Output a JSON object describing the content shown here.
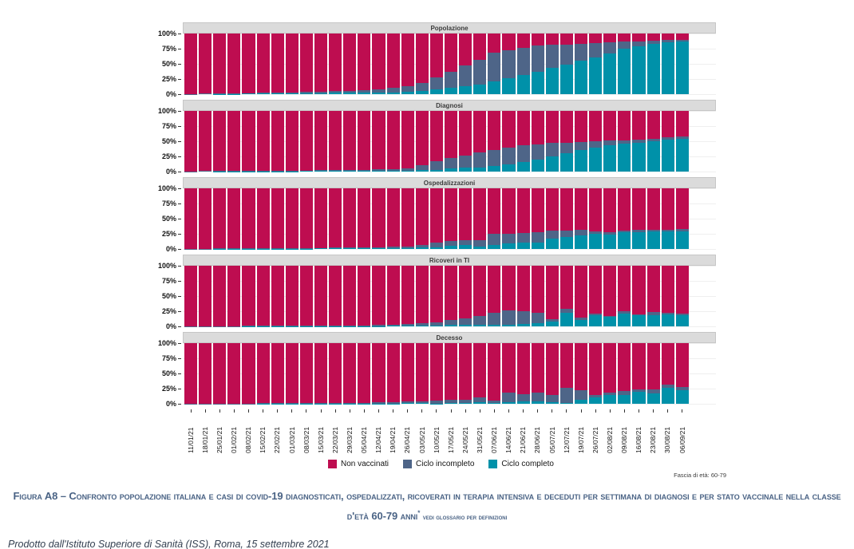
{
  "age_note": "Fascia di età: 60-79",
  "caption": {
    "text": "Figura A8 – Confronto popolazione italiana e casi di covid-19 diagnosticati, ospedalizzati, ricoverati in terapia intensiva e deceduti per settimana di diagnosi e per stato vaccinale nella classe d'età 60-79 anni",
    "asterisk": "*",
    "note": "vedi glossario per definizioni"
  },
  "footer": {
    "text": "Prodotto dall'Istituto Superiore di Sanità (ISS), Roma, 15 settembre 2021"
  },
  "chart_data": {
    "type": "bar",
    "stacked": true,
    "percent": true,
    "ylim": [
      0,
      100
    ],
    "grid": true,
    "legend_position": "bottom",
    "y_ticks": [
      "100%",
      "75%",
      "50%",
      "25%",
      "0%"
    ],
    "legend": [
      "Non vaccinati",
      "Ciclo incompleto",
      "Ciclo completo"
    ],
    "colors": {
      "non_vaccinati": "#be0d50",
      "ciclo_incompleto": "#4e6588",
      "ciclo_completo": "#0091a9"
    },
    "categories": [
      "11/01/21",
      "18/01/21",
      "25/01/21",
      "01/02/21",
      "08/02/21",
      "15/02/21",
      "22/02/21",
      "01/03/21",
      "08/03/21",
      "15/03/21",
      "22/03/21",
      "29/03/21",
      "05/04/21",
      "12/04/21",
      "19/04/21",
      "26/04/21",
      "03/05/21",
      "10/05/21",
      "17/05/21",
      "24/05/21",
      "31/05/21",
      "07/06/21",
      "14/06/21",
      "21/06/21",
      "28/06/21",
      "05/07/21",
      "12/07/21",
      "19/07/21",
      "26/07/21",
      "02/08/21",
      "09/08/21",
      "16/08/21",
      "23/08/21",
      "30/08/21",
      "06/09/21"
    ],
    "panels": [
      {
        "title": "Popolazione",
        "non_vaccinati": [
          99.5,
          99,
          98.7,
          98.5,
          98.3,
          97.5,
          97,
          97,
          96,
          95.5,
          95,
          94.5,
          93.5,
          92,
          90,
          87,
          82,
          73,
          63,
          53,
          43,
          32,
          28,
          24,
          20,
          19,
          18,
          17,
          16,
          14,
          13,
          13,
          12,
          11,
          10.5
        ],
        "ciclo_incompleto": [
          0.5,
          1,
          1,
          1,
          1,
          1.5,
          2,
          2,
          2.5,
          3,
          3,
          3.5,
          4,
          5,
          7,
          9,
          13,
          19,
          27,
          34,
          41,
          47,
          46,
          45,
          43,
          38,
          33,
          28,
          24,
          19,
          12,
          8,
          5,
          3.5,
          2.5
        ],
        "ciclo_completo": [
          0,
          0,
          0.3,
          0.5,
          0.7,
          1,
          1,
          1,
          1.5,
          1.5,
          2,
          2,
          2.5,
          3,
          3,
          4,
          5,
          8,
          10,
          13,
          16,
          21,
          26,
          31,
          37,
          43,
          49,
          55,
          60,
          67,
          75,
          79,
          83,
          85.5,
          87
        ]
      },
      {
        "title": "Diagnosi",
        "non_vaccinati": [
          99.5,
          98.9,
          98.3,
          98.2,
          98.6,
          98.5,
          98.5,
          98.4,
          98.2,
          97.5,
          97.5,
          97,
          97,
          96.5,
          95.5,
          94.5,
          90,
          83,
          78,
          74,
          69,
          64,
          60,
          57,
          55,
          53,
          52,
          51,
          50,
          49,
          48,
          47,
          46,
          44,
          42
        ],
        "ciclo_incompleto": [
          0.5,
          1,
          1.5,
          1.5,
          1,
          1,
          1,
          1,
          1,
          1.5,
          1.5,
          2,
          2,
          2.5,
          3,
          4,
          8,
          14,
          17,
          20,
          24,
          27,
          28,
          27,
          25,
          22,
          18,
          14,
          11,
          8,
          6,
          5,
          4,
          4,
          4
        ],
        "ciclo_completo": [
          0,
          0.1,
          0.2,
          0.3,
          0.4,
          0.5,
          0.5,
          0.6,
          0.8,
          1,
          1,
          1,
          1,
          1,
          1.5,
          1.5,
          2,
          3,
          5,
          6,
          7,
          9,
          12,
          16,
          20,
          25,
          30,
          35,
          39,
          43,
          46,
          48,
          50,
          52,
          54
        ]
      },
      {
        "title": "Ospedalizzazioni",
        "non_vaccinati": [
          99.7,
          99.5,
          98.8,
          98.7,
          98.7,
          98.6,
          98.5,
          98.5,
          98.4,
          98.2,
          97.5,
          97.5,
          97,
          97,
          96.5,
          95.5,
          93,
          90,
          87,
          85,
          85,
          75,
          75,
          73,
          72,
          70,
          70,
          69,
          71.5,
          72,
          70,
          69,
          69,
          69,
          67
        ],
        "ciclo_incompleto": [
          0.3,
          0.5,
          1,
          1,
          1,
          1,
          1,
          1,
          1,
          1,
          1.5,
          1.5,
          2,
          2,
          2.5,
          3,
          5,
          7.5,
          8,
          9,
          11,
          19,
          16,
          17,
          18,
          13,
          10,
          8,
          3,
          4,
          3,
          3,
          2.5,
          2.5,
          3.5
        ],
        "ciclo_completo": [
          0,
          0,
          0.2,
          0.3,
          0.3,
          0.4,
          0.5,
          0.5,
          0.6,
          0.8,
          1,
          1,
          1,
          1,
          1,
          1.5,
          2,
          2.5,
          5,
          6,
          4,
          6,
          9,
          10,
          10,
          17,
          20,
          23,
          25.5,
          24,
          27,
          28,
          28.5,
          28.5,
          29.5
        ]
      },
      {
        "title": "Ricoveri in TI",
        "non_vaccinati": [
          99.8,
          99.7,
          99.5,
          99.5,
          99.3,
          99.3,
          99,
          98.9,
          98.7,
          98.5,
          98.5,
          98,
          98,
          97.5,
          97,
          96.5,
          95,
          93,
          90,
          87,
          83,
          78,
          73,
          75,
          78,
          88,
          71,
          85,
          79,
          83,
          75,
          80,
          76,
          78,
          79
        ],
        "ciclo_incompleto": [
          0.2,
          0.3,
          0.5,
          0.5,
          0.5,
          0.5,
          0.7,
          0.8,
          1,
          1,
          1,
          1.5,
          1.5,
          2,
          2,
          2.5,
          4,
          6,
          8,
          10,
          15,
          20,
          24,
          21,
          17,
          4,
          7,
          5,
          2,
          1,
          4,
          1,
          6,
          2,
          2
        ],
        "ciclo_completo": [
          0,
          0,
          0,
          0,
          0.2,
          0.2,
          0.3,
          0.3,
          0.3,
          0.5,
          0.5,
          0.5,
          0.5,
          0.5,
          1,
          1,
          1,
          1,
          2,
          3,
          2,
          2,
          3,
          4,
          5,
          8,
          22,
          10,
          19,
          16,
          21,
          19,
          18,
          20,
          19
        ]
      },
      {
        "title": "Decesso",
        "non_vaccinati": [
          99.8,
          99.7,
          99.5,
          99.5,
          99.5,
          99.3,
          99.3,
          99.1,
          98.9,
          98.7,
          98.7,
          98.5,
          98,
          97.5,
          97.5,
          96.5,
          96,
          94.5,
          93.5,
          93,
          90,
          94.5,
          81,
          84,
          81,
          86,
          73,
          78,
          86,
          81,
          79,
          76,
          76,
          69,
          73
        ],
        "ciclo_incompleto": [
          0.2,
          0.3,
          0.5,
          0.5,
          0.5,
          0.5,
          0.5,
          0.7,
          0.8,
          1,
          1,
          1,
          1.5,
          2,
          2,
          2.5,
          3,
          5,
          5,
          6,
          8,
          4,
          17,
          12,
          15,
          12,
          26,
          16,
          4,
          4,
          6,
          4,
          7,
          5,
          5
        ],
        "ciclo_completo": [
          0,
          0,
          0,
          0,
          0,
          0.2,
          0.2,
          0.2,
          0.3,
          0.3,
          0.3,
          0.5,
          0.5,
          0.5,
          0.5,
          1,
          1,
          0.5,
          1.5,
          1,
          2,
          1.5,
          2,
          4,
          4,
          2,
          1,
          6,
          10,
          15,
          15,
          20,
          17,
          26,
          22
        ]
      }
    ]
  }
}
